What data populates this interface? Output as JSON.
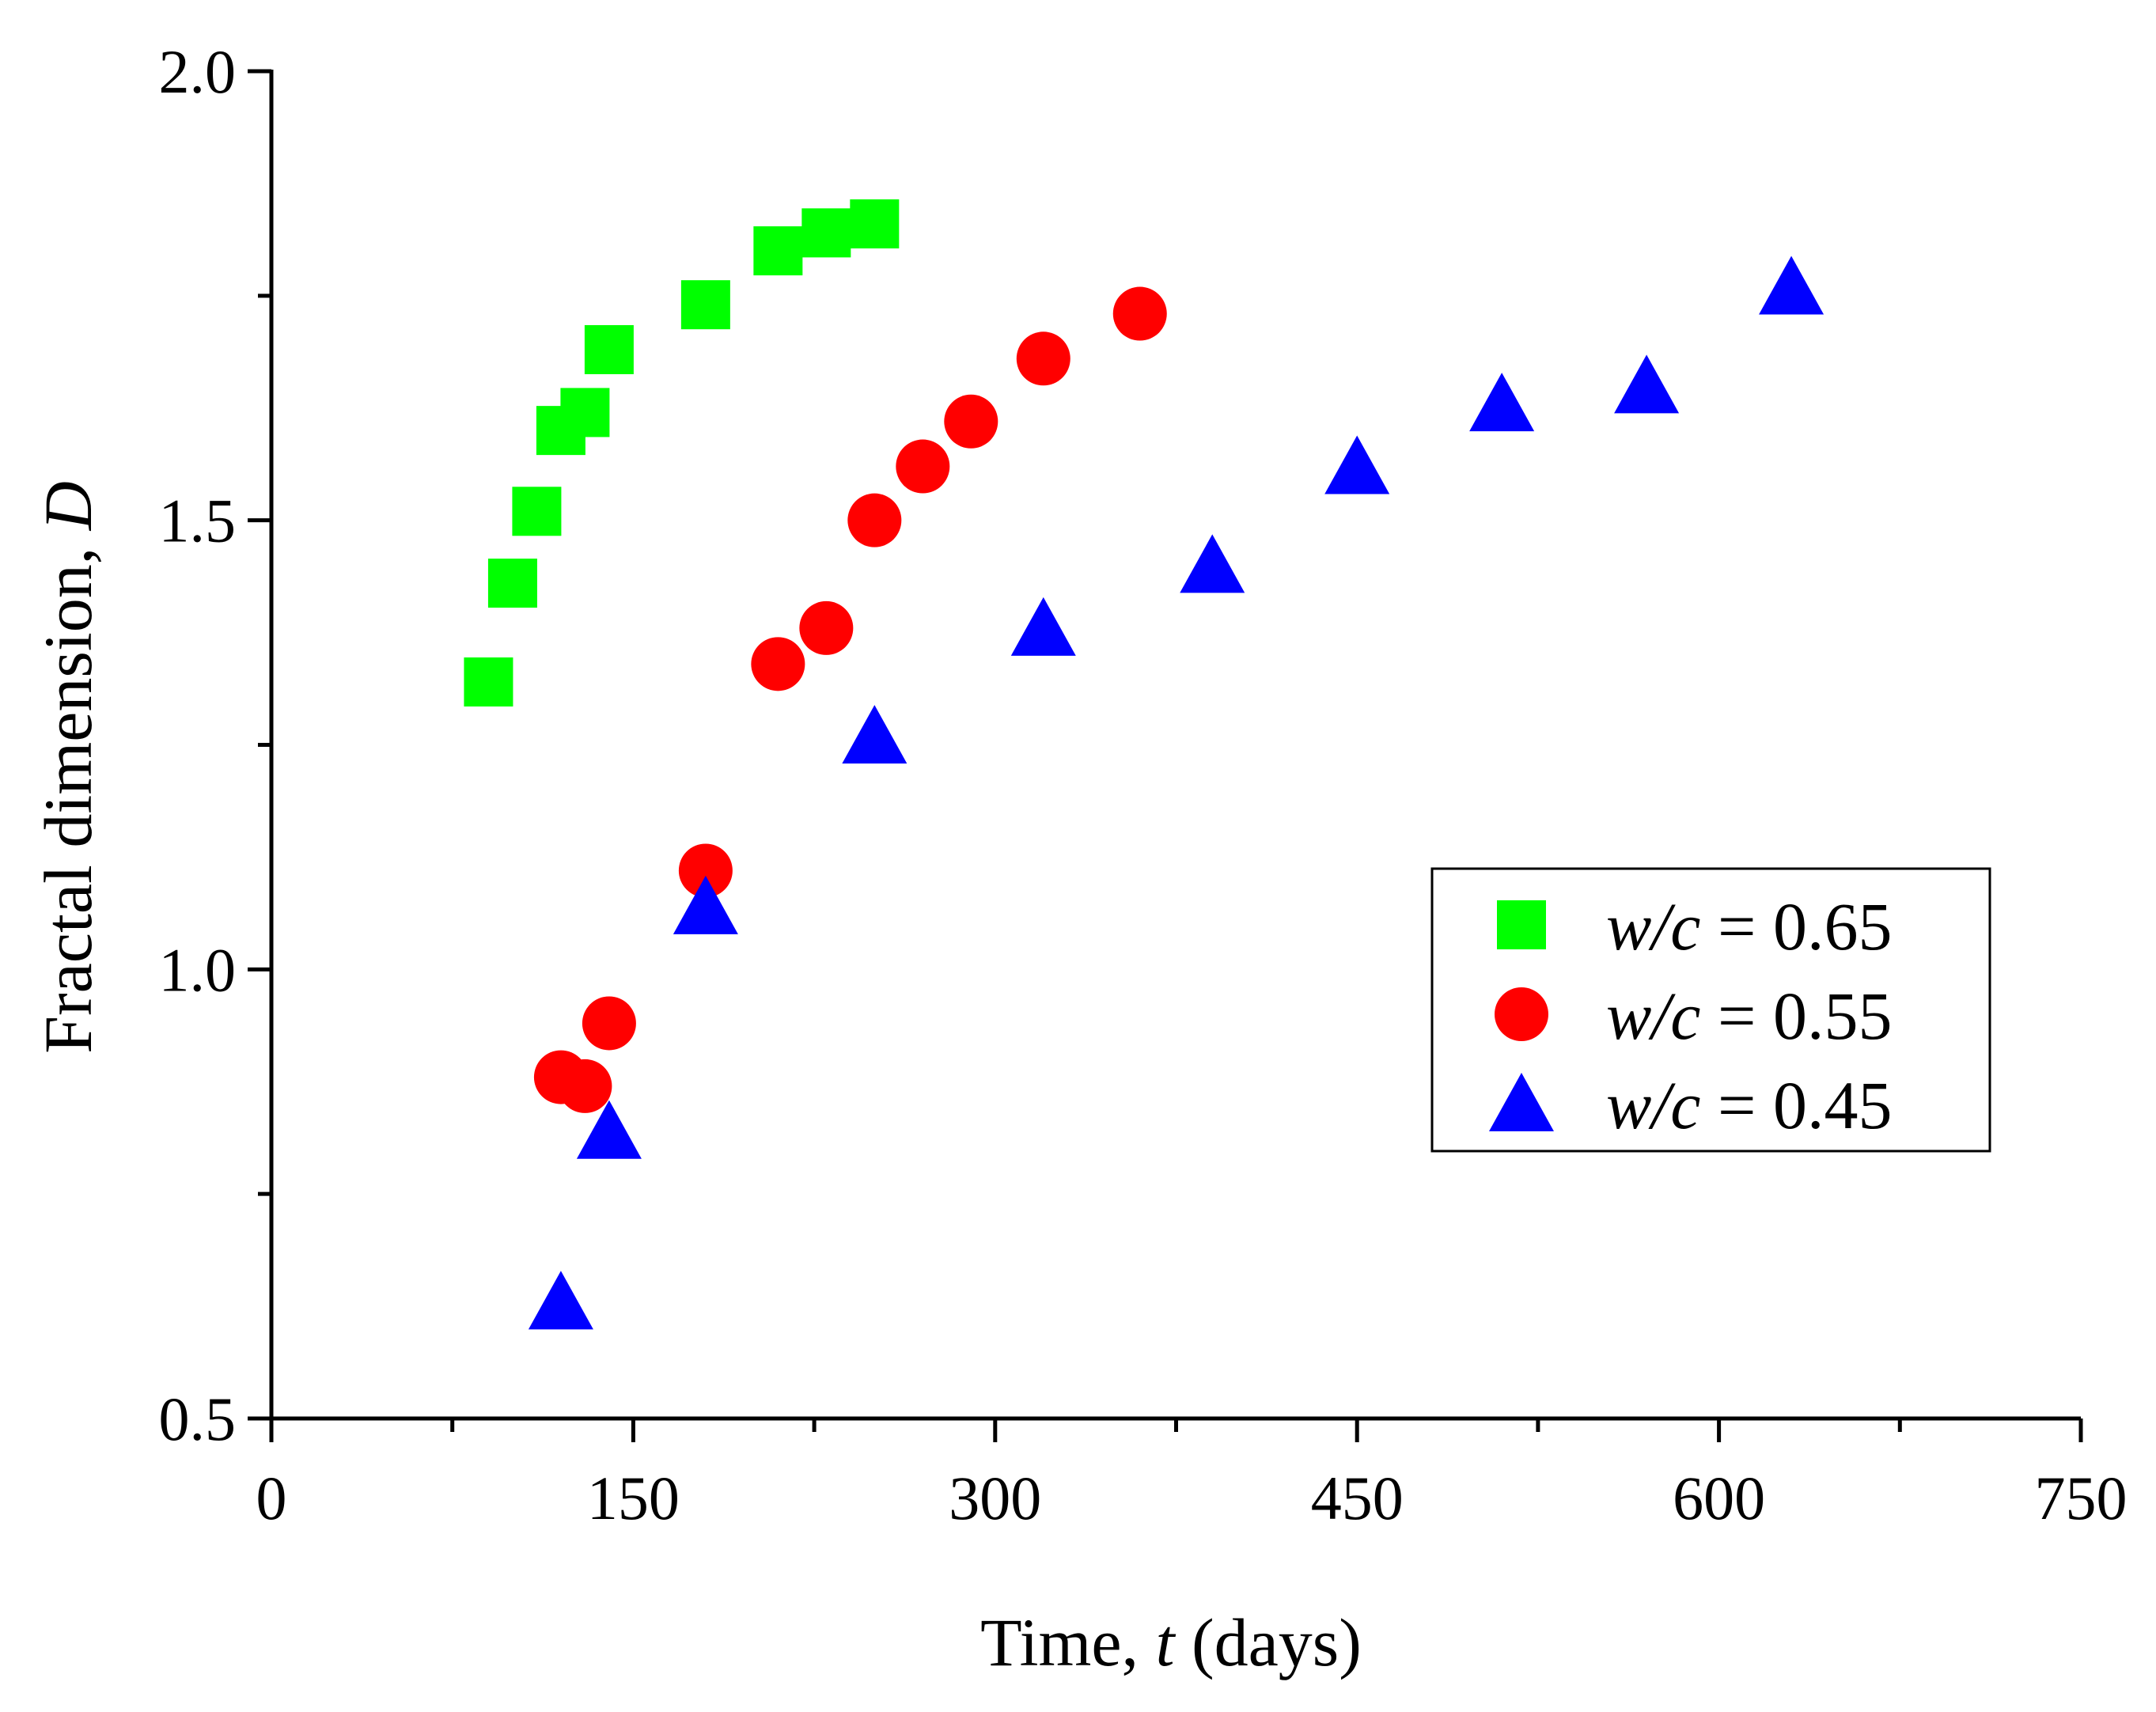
{
  "chart_data": {
    "type": "scatter",
    "title": "",
    "xlabel": {
      "prefix": "Time, ",
      "var": "t",
      "suffix": " (days)"
    },
    "ylabel": {
      "prefix": "Fractal dimension, ",
      "var": "D",
      "suffix": ""
    },
    "xlim": [
      0,
      750
    ],
    "ylim": [
      0.5,
      2.0
    ],
    "xticks": [
      0,
      150,
      300,
      450,
      600,
      750
    ],
    "xtick_labels": [
      "0",
      "150",
      "300",
      "450",
      "600",
      "750"
    ],
    "xminor_ticks": [
      75,
      225,
      375,
      525,
      675
    ],
    "yticks": [
      0.5,
      1.0,
      1.5,
      2.0
    ],
    "ytick_labels": [
      "0.5",
      "1.0",
      "1.5",
      "2.0"
    ],
    "yminor_ticks": [
      0.75,
      1.25,
      1.75
    ],
    "grid": false,
    "legend_position": "right-middle",
    "series": [
      {
        "name": "w/c = 0.65",
        "label_var": "w/c",
        "label_rest": " = 0.65",
        "marker": "square",
        "color": "#00ff00",
        "points": [
          [
            90,
            1.32
          ],
          [
            100,
            1.43
          ],
          [
            110,
            1.51
          ],
          [
            120,
            1.6
          ],
          [
            130,
            1.62
          ],
          [
            140,
            1.69
          ],
          [
            180,
            1.74
          ],
          [
            210,
            1.8
          ],
          [
            230,
            1.82
          ],
          [
            250,
            1.83
          ]
        ]
      },
      {
        "name": "w/c = 0.55",
        "label_var": "w/c",
        "label_rest": " = 0.55",
        "marker": "circle",
        "color": "#ff0000",
        "points": [
          [
            120,
            0.88
          ],
          [
            130,
            0.87
          ],
          [
            140,
            0.94
          ],
          [
            180,
            1.11
          ],
          [
            210,
            1.34
          ],
          [
            230,
            1.38
          ],
          [
            250,
            1.5
          ],
          [
            270,
            1.56
          ],
          [
            290,
            1.61
          ],
          [
            320,
            1.68
          ],
          [
            360,
            1.73
          ]
        ]
      },
      {
        "name": "w/c = 0.45",
        "label_var": "w/c",
        "label_rest": " = 0.45",
        "marker": "triangle",
        "color": "#0000ff",
        "points": [
          [
            120,
            0.63
          ],
          [
            140,
            0.82
          ],
          [
            180,
            1.07
          ],
          [
            250,
            1.26
          ],
          [
            320,
            1.38
          ],
          [
            390,
            1.45
          ],
          [
            450,
            1.56
          ],
          [
            510,
            1.63
          ],
          [
            570,
            1.65
          ],
          [
            630,
            1.76
          ]
        ]
      }
    ]
  }
}
